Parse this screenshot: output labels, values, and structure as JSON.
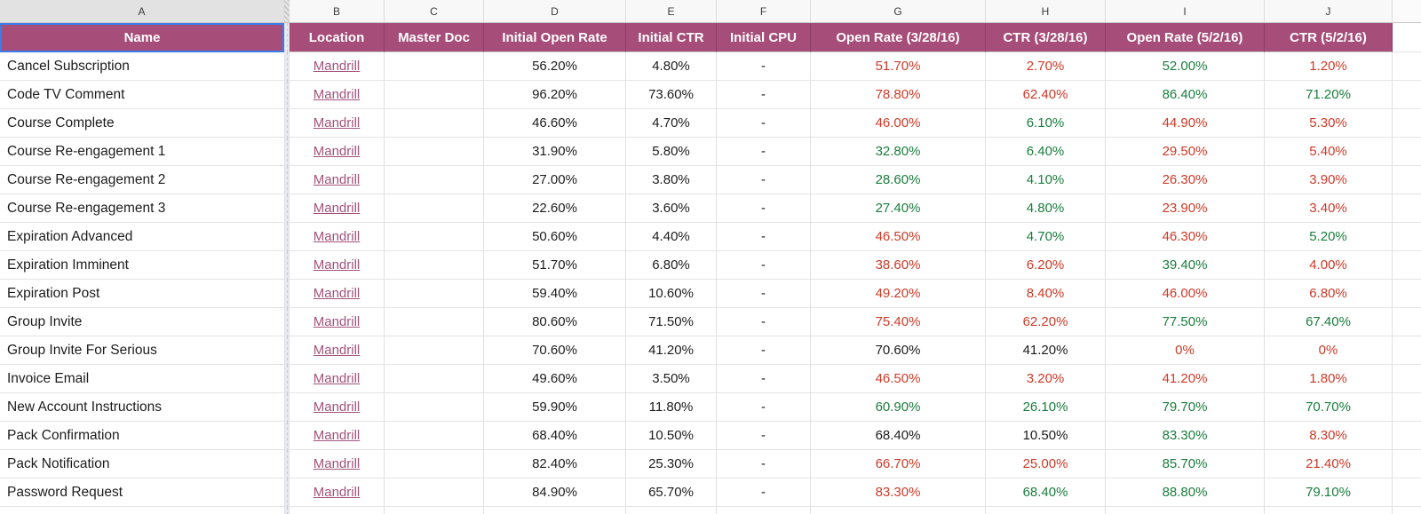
{
  "sheet": {
    "column_letters": [
      "A",
      "B",
      "C",
      "D",
      "E",
      "F",
      "G",
      "H",
      "I",
      "J"
    ],
    "headers": [
      "Name",
      "Location",
      "Master Doc",
      "Initial Open Rate",
      "Initial CTR",
      "Initial CPU",
      "Open Rate (3/28/16)",
      "CTR (3/28/16)",
      "Open Rate (5/2/16)",
      "CTR (5/2/16)"
    ],
    "link_label": "Mandrill",
    "selected_cell": "A1",
    "rows": [
      {
        "name": "Cancel Subscription",
        "location": "Mandrill",
        "master_doc": "",
        "values": [
          "56.20%",
          "4.80%",
          "-",
          "51.70%",
          "2.70%",
          "52.00%",
          "1.20%"
        ],
        "tones": [
          "",
          "",
          "",
          "neg",
          "neg",
          "pos",
          "neg"
        ]
      },
      {
        "name": "Code TV Comment",
        "location": "Mandrill",
        "master_doc": "",
        "values": [
          "96.20%",
          "73.60%",
          "-",
          "78.80%",
          "62.40%",
          "86.40%",
          "71.20%"
        ],
        "tones": [
          "",
          "",
          "",
          "neg",
          "neg",
          "pos",
          "pos"
        ]
      },
      {
        "name": "Course Complete",
        "location": "Mandrill",
        "master_doc": "",
        "values": [
          "46.60%",
          "4.70%",
          "-",
          "46.00%",
          "6.10%",
          "44.90%",
          "5.30%"
        ],
        "tones": [
          "",
          "",
          "",
          "neg",
          "pos",
          "neg",
          "neg"
        ]
      },
      {
        "name": "Course Re-engagement 1",
        "location": "Mandrill",
        "master_doc": "",
        "values": [
          "31.90%",
          "5.80%",
          "-",
          "32.80%",
          "6.40%",
          "29.50%",
          "5.40%"
        ],
        "tones": [
          "",
          "",
          "",
          "pos",
          "pos",
          "neg",
          "neg"
        ]
      },
      {
        "name": "Course Re-engagement 2",
        "location": "Mandrill",
        "master_doc": "",
        "values": [
          "27.00%",
          "3.80%",
          "-",
          "28.60%",
          "4.10%",
          "26.30%",
          "3.90%"
        ],
        "tones": [
          "",
          "",
          "",
          "pos",
          "pos",
          "neg",
          "neg"
        ]
      },
      {
        "name": "Course Re-engagement 3",
        "location": "Mandrill",
        "master_doc": "",
        "values": [
          "22.60%",
          "3.60%",
          "-",
          "27.40%",
          "4.80%",
          "23.90%",
          "3.40%"
        ],
        "tones": [
          "",
          "",
          "",
          "pos",
          "pos",
          "neg",
          "neg"
        ]
      },
      {
        "name": "Expiration Advanced",
        "location": "Mandrill",
        "master_doc": "",
        "values": [
          "50.60%",
          "4.40%",
          "-",
          "46.50%",
          "4.70%",
          "46.30%",
          "5.20%"
        ],
        "tones": [
          "",
          "",
          "",
          "neg",
          "pos",
          "neg",
          "pos"
        ]
      },
      {
        "name": "Expiration Imminent",
        "location": "Mandrill",
        "master_doc": "",
        "values": [
          "51.70%",
          "6.80%",
          "-",
          "38.60%",
          "6.20%",
          "39.40%",
          "4.00%"
        ],
        "tones": [
          "",
          "",
          "",
          "neg",
          "neg",
          "pos",
          "neg"
        ]
      },
      {
        "name": "Expiration Post",
        "location": "Mandrill",
        "master_doc": "",
        "values": [
          "59.40%",
          "10.60%",
          "-",
          "49.20%",
          "8.40%",
          "46.00%",
          "6.80%"
        ],
        "tones": [
          "",
          "",
          "",
          "neg",
          "neg",
          "neg",
          "neg"
        ]
      },
      {
        "name": "Group Invite",
        "location": "Mandrill",
        "master_doc": "",
        "values": [
          "80.60%",
          "71.50%",
          "-",
          "75.40%",
          "62.20%",
          "77.50%",
          "67.40%"
        ],
        "tones": [
          "",
          "",
          "",
          "neg",
          "neg",
          "pos",
          "pos"
        ]
      },
      {
        "name": "Group Invite For Serious",
        "location": "Mandrill",
        "master_doc": "",
        "values": [
          "70.60%",
          "41.20%",
          "-",
          "70.60%",
          "41.20%",
          "0%",
          "0%"
        ],
        "tones": [
          "",
          "",
          "",
          "",
          "",
          "neg",
          "neg"
        ]
      },
      {
        "name": "Invoice Email",
        "location": "Mandrill",
        "master_doc": "",
        "values": [
          "49.60%",
          "3.50%",
          "-",
          "46.50%",
          "3.20%",
          "41.20%",
          "1.80%"
        ],
        "tones": [
          "",
          "",
          "",
          "neg",
          "neg",
          "neg",
          "neg"
        ]
      },
      {
        "name": "New Account Instructions",
        "location": "Mandrill",
        "master_doc": "",
        "values": [
          "59.90%",
          "11.80%",
          "-",
          "60.90%",
          "26.10%",
          "79.70%",
          "70.70%"
        ],
        "tones": [
          "",
          "",
          "",
          "pos",
          "pos",
          "pos",
          "pos"
        ]
      },
      {
        "name": "Pack Confirmation",
        "location": "Mandrill",
        "master_doc": "",
        "values": [
          "68.40%",
          "10.50%",
          "-",
          "68.40%",
          "10.50%",
          "83.30%",
          "8.30%"
        ],
        "tones": [
          "",
          "",
          "",
          "",
          "",
          "pos",
          "neg"
        ]
      },
      {
        "name": "Pack Notification",
        "location": "Mandrill",
        "master_doc": "",
        "values": [
          "82.40%",
          "25.30%",
          "-",
          "66.70%",
          "25.00%",
          "85.70%",
          "21.40%"
        ],
        "tones": [
          "",
          "",
          "",
          "neg",
          "neg",
          "pos",
          "neg"
        ]
      },
      {
        "name": "Password Request",
        "location": "Mandrill",
        "master_doc": "",
        "values": [
          "84.90%",
          "65.70%",
          "-",
          "83.30%",
          "68.40%",
          "88.80%",
          "79.10%"
        ],
        "tones": [
          "",
          "",
          "",
          "neg",
          "pos",
          "pos",
          "pos"
        ]
      }
    ]
  },
  "colors": {
    "header_bg": "#a64d79",
    "header_text": "#ffffff",
    "positive_green": "#1a7d3d",
    "negative_red": "#cc3a28",
    "link_magenta": "#a2537c",
    "selection_blue": "#3b7ce8",
    "strip_bg": "#f8f8f8",
    "strip_selected_bg": "#e2e2e2"
  }
}
